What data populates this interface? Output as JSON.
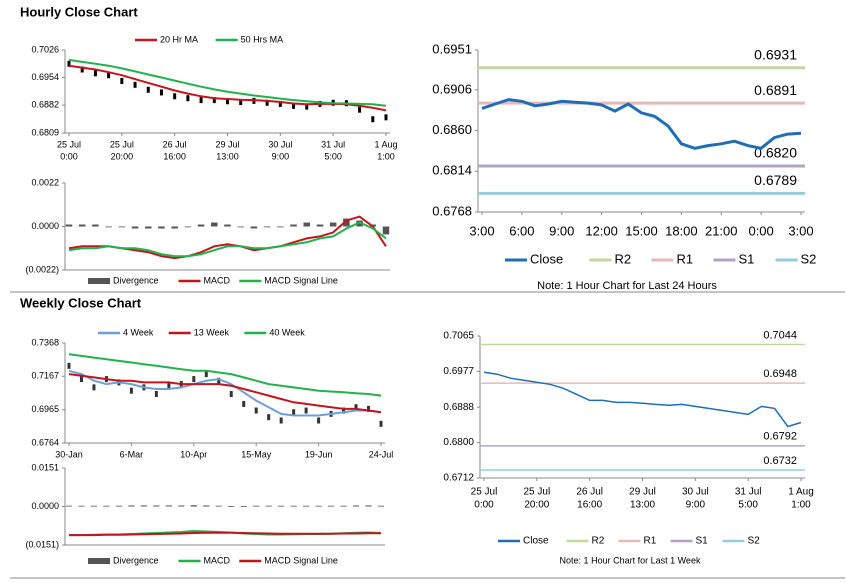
{
  "chart_data": [
    {
      "type": "line",
      "title": "Hourly Close Chart",
      "categories": [
        [
          "25 Jul",
          "0:00"
        ],
        null,
        null,
        null,
        [
          "25 Jul",
          "20:00"
        ],
        null,
        null,
        null,
        [
          "26 Jul",
          "16:00"
        ],
        null,
        null,
        null,
        [
          "29 Jul",
          "13:00"
        ],
        null,
        null,
        null,
        [
          "30 Jul",
          "9:00"
        ],
        null,
        null,
        null,
        [
          "31 Jul",
          "5:00"
        ],
        null,
        null,
        null,
        [
          "1 Aug",
          "1:00"
        ]
      ],
      "close": [
        0.699,
        0.6975,
        0.6965,
        0.696,
        0.6945,
        0.6935,
        0.6922,
        0.6915,
        0.6905,
        0.69,
        0.6895,
        0.6895,
        0.6892,
        0.689,
        0.6893,
        0.6888,
        0.6885,
        0.688,
        0.6878,
        0.6885,
        0.6888,
        0.6887,
        0.687,
        0.6845,
        0.685
      ],
      "close_color": "#000000",
      "series": [
        {
          "name": "20 Hr MA",
          "color": "#c0161d",
          "values": [
            0.6985,
            0.698,
            0.6975,
            0.6968,
            0.696,
            0.695,
            0.694,
            0.693,
            0.692,
            0.6912,
            0.6905,
            0.69,
            0.6898,
            0.6896,
            0.6895,
            0.6893,
            0.689,
            0.6886,
            0.6884,
            0.6885,
            0.6885,
            0.6884,
            0.688,
            0.6875,
            0.6868
          ]
        },
        {
          "name": "50 Hrs MA",
          "color": "#23b14d",
          "values": [
            0.7,
            0.6995,
            0.699,
            0.6985,
            0.6978,
            0.697,
            0.6962,
            0.6954,
            0.6946,
            0.6938,
            0.693,
            0.6923,
            0.6917,
            0.6912,
            0.6907,
            0.6903,
            0.6899,
            0.6895,
            0.6892,
            0.6889,
            0.6887,
            0.6886,
            0.6885,
            0.6884,
            0.688
          ]
        }
      ],
      "ylim": [
        0.6809,
        0.7026
      ],
      "yticks": [
        0.7026,
        0.6954,
        0.6882,
        0.6809
      ],
      "legend": "top"
    },
    {
      "type": "line",
      "series": [
        {
          "name": "Divergence",
          "color": "#555555",
          "style": "bar",
          "values": [
            0.0001,
            0.0001,
            0.0001,
            0,
            0,
            -0.0001,
            -0.0001,
            -0.0001,
            -0.0001,
            0,
            0.0001,
            0.0002,
            0.0001,
            0,
            -0.0001,
            0,
            0,
            0.0001,
            0.0002,
            0.0001,
            0.0002,
            0.0004,
            0.0003,
            0.0001,
            -0.0004
          ]
        },
        {
          "name": "MACD",
          "color": "#c0161d",
          "values": [
            -0.0011,
            -0.001,
            -0.001,
            -0.001,
            -0.0011,
            -0.0012,
            -0.0013,
            -0.0015,
            -0.0016,
            -0.0015,
            -0.0013,
            -0.001,
            -0.0009,
            -0.001,
            -0.0012,
            -0.0011,
            -0.001,
            -0.0008,
            -0.0006,
            -0.0005,
            -0.0003,
            0.0003,
            0.0005,
            0.0,
            -0.001
          ]
        },
        {
          "name": "MACD Signal Line",
          "color": "#23b14d",
          "values": [
            -0.0012,
            -0.0011,
            -0.0011,
            -0.001,
            -0.0011,
            -0.0011,
            -0.0012,
            -0.0014,
            -0.0015,
            -0.0015,
            -0.0014,
            -0.0012,
            -0.001,
            -0.001,
            -0.0011,
            -0.0011,
            -0.001,
            -0.0009,
            -0.0008,
            -0.0006,
            -0.0005,
            -0.0001,
            0.0002,
            -0.0001,
            -0.0006
          ]
        }
      ],
      "ylim": [
        -0.0022,
        0.0022
      ],
      "yticks": [
        0.0022,
        {
          "value": 0,
          "label": "0.0000"
        },
        {
          "value": -0.0022,
          "label": "(0.0022)"
        }
      ],
      "legend": "bottom"
    },
    {
      "type": "line",
      "categories": [
        "3:00",
        null,
        null,
        "6:00",
        null,
        null,
        "9:00",
        null,
        null,
        "12:00",
        null,
        null,
        "15:00",
        null,
        null,
        "18:00",
        null,
        null,
        "21:00",
        null,
        null,
        "0:00",
        null,
        null,
        "3:00"
      ],
      "series": [
        {
          "name": "Close",
          "color": "#1f6eb5",
          "width": 3,
          "values": [
            0.6885,
            0.689,
            0.6895,
            0.6893,
            0.6888,
            0.689,
            0.6893,
            0.6892,
            0.6891,
            0.6889,
            0.6882,
            0.689,
            0.688,
            0.6876,
            0.6865,
            0.6845,
            0.684,
            0.6843,
            0.6845,
            0.6848,
            0.6843,
            0.684,
            0.6852,
            0.6856,
            0.6857
          ]
        }
      ],
      "levels": [
        {
          "name": "R2",
          "color": "#c3d69b",
          "value": 0.6931
        },
        {
          "name": "R1",
          "color": "#e6b9b8",
          "value": 0.6891
        },
        {
          "name": "S1",
          "color": "#b3a2c7",
          "value": 0.682,
          "value_label": "0.6820"
        },
        {
          "name": "S2",
          "color": "#93cddd",
          "value": 0.6789
        }
      ],
      "ylim": [
        0.6768,
        0.6951
      ],
      "yticks": [
        0.6951,
        0.6906,
        {
          "value": 0.686,
          "label": "0.6860"
        },
        0.6814,
        0.6768
      ],
      "legend": "bottom",
      "note": "Note: 1 Hour Chart for Last 24 Hours"
    },
    {
      "type": "line",
      "title": "Weekly Close Chart",
      "categories": [
        "30-Jan",
        null,
        null,
        null,
        null,
        "6-Mar",
        null,
        null,
        null,
        null,
        "10-Apr",
        null,
        null,
        null,
        null,
        "15-May",
        null,
        null,
        null,
        null,
        "19-Jun",
        null,
        null,
        null,
        null,
        "24-Jul"
      ],
      "close": [
        0.723,
        0.715,
        0.71,
        0.715,
        0.713,
        0.708,
        0.71,
        0.706,
        0.711,
        0.712,
        0.715,
        0.718,
        0.714,
        0.706,
        0.7,
        0.696,
        0.692,
        0.69,
        0.695,
        0.696,
        0.69,
        0.694,
        0.696,
        0.698,
        0.697,
        0.688
      ],
      "close_color": "#333333",
      "series": [
        {
          "name": "4 Week",
          "color": "#6f9fd8",
          "values": [
            0.72,
            0.718,
            0.714,
            0.712,
            0.713,
            0.712,
            0.71,
            0.709,
            0.709,
            0.71,
            0.712,
            0.714,
            0.715,
            0.712,
            0.707,
            0.702,
            0.698,
            0.694,
            0.693,
            0.693,
            0.693,
            0.694,
            0.695,
            0.696,
            0.696,
            0.695
          ]
        },
        {
          "name": "13 Week",
          "color": "#c0161d",
          "values": [
            0.718,
            0.717,
            0.716,
            0.715,
            0.714,
            0.714,
            0.713,
            0.713,
            0.713,
            0.712,
            0.712,
            0.712,
            0.712,
            0.711,
            0.709,
            0.707,
            0.705,
            0.703,
            0.701,
            0.7,
            0.699,
            0.698,
            0.697,
            0.697,
            0.696,
            0.695
          ]
        },
        {
          "name": "40 Week",
          "color": "#23b14d",
          "values": [
            0.73,
            0.729,
            0.728,
            0.727,
            0.726,
            0.725,
            0.724,
            0.723,
            0.722,
            0.721,
            0.72,
            0.72,
            0.719,
            0.718,
            0.716,
            0.714,
            0.712,
            0.711,
            0.71,
            0.709,
            0.708,
            0.7075,
            0.707,
            0.7065,
            0.706,
            0.705
          ]
        }
      ],
      "ylim": [
        0.6764,
        0.7368
      ],
      "yticks": [
        0.7368,
        0.7167,
        0.6965,
        0.6764
      ],
      "legend": "top"
    },
    {
      "type": "line",
      "series": [
        {
          "name": "Divergence",
          "color": "#555555",
          "style": "bar",
          "values": [
            0.0003,
            0.0003,
            0.0003,
            0.0003,
            0.0003,
            0.0004,
            0.0004,
            0.0004,
            0.0004,
            0.0004,
            0.0005,
            0.0004,
            0.0003,
            0.0002,
            0.0002,
            0.0003,
            0.0003,
            0.0003,
            0.0003,
            0.0003,
            0.0003,
            0.0003,
            0.0003,
            0.0004,
            0.0004,
            0.0003
          ]
        },
        {
          "name": "MACD",
          "color": "#23b14d",
          "values": [
            -0.0112,
            -0.0112,
            -0.0111,
            -0.011,
            -0.011,
            -0.0108,
            -0.0106,
            -0.0104,
            -0.0102,
            -0.01,
            -0.0096,
            -0.0098,
            -0.01,
            -0.0102,
            -0.0106,
            -0.0108,
            -0.011,
            -0.011,
            -0.0109,
            -0.0108,
            -0.0108,
            -0.0107,
            -0.0105,
            -0.0103,
            -0.0102,
            -0.0104
          ]
        },
        {
          "name": "MACD Signal Line",
          "color": "#c0161d",
          "values": [
            -0.0112,
            -0.0112,
            -0.0112,
            -0.0111,
            -0.0111,
            -0.011,
            -0.0109,
            -0.0108,
            -0.0107,
            -0.0106,
            -0.0104,
            -0.0103,
            -0.0103,
            -0.0103,
            -0.0104,
            -0.0105,
            -0.0106,
            -0.0107,
            -0.0107,
            -0.0107,
            -0.0107,
            -0.0107,
            -0.0106,
            -0.0106,
            -0.0105,
            -0.0105
          ]
        }
      ],
      "ylim": [
        -0.0151,
        0.0151
      ],
      "yticks": [
        0.0151,
        {
          "value": 0,
          "label": "0.0000"
        },
        {
          "value": -0.0151,
          "label": "(0.0151)"
        }
      ],
      "legend": "bottom"
    },
    {
      "type": "line",
      "categories": [
        [
          "25 Jul",
          "0:00"
        ],
        null,
        null,
        null,
        [
          "25 Jul",
          "20:00"
        ],
        null,
        null,
        null,
        [
          "26 Jul",
          "16:00"
        ],
        null,
        null,
        null,
        [
          "29 Jul",
          "13:00"
        ],
        null,
        null,
        null,
        [
          "30 Jul",
          "9:00"
        ],
        null,
        null,
        null,
        [
          "31 Jul",
          "5:00"
        ],
        null,
        null,
        null,
        [
          "1 Aug",
          "1:00"
        ]
      ],
      "series": [
        {
          "name": "Close",
          "color": "#1f6eb5",
          "width": 1.5,
          "values": [
            0.6975,
            0.697,
            0.696,
            0.6955,
            0.695,
            0.6945,
            0.6935,
            0.692,
            0.6905,
            0.6905,
            0.69,
            0.69,
            0.6898,
            0.6895,
            0.6893,
            0.6895,
            0.689,
            0.6885,
            0.688,
            0.6875,
            0.687,
            0.689,
            0.6885,
            0.684,
            0.685
          ]
        }
      ],
      "levels": [
        {
          "name": "R2",
          "color": "#c3d69b",
          "value": 0.7044
        },
        {
          "name": "R1",
          "color": "#e6b9b8",
          "value": 0.6948
        },
        {
          "name": "S1",
          "color": "#b3a2c7",
          "value": 0.6792
        },
        {
          "name": "S2",
          "color": "#93cddd",
          "value": 0.6732
        }
      ],
      "ylim": [
        0.6712,
        0.7065
      ],
      "yticks": [
        0.7065,
        0.6977,
        0.6888,
        {
          "value": 0.68,
          "label": "0.6800"
        },
        0.6712
      ],
      "legend": "bottom",
      "note": "Note: 1 Hour Chart for Last 1 Week"
    }
  ]
}
